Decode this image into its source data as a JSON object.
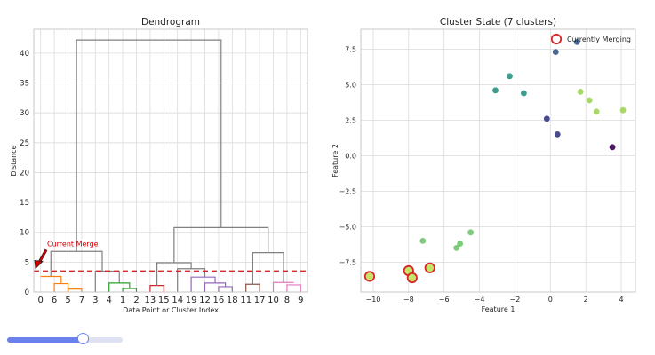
{
  "chart_data": [
    {
      "type": "dendrogram",
      "title": "Dendrogram",
      "xlabel": "Data Point or Cluster Index",
      "ylabel": "Distance",
      "ylim": [
        0,
        44
      ],
      "yticks": [
        0,
        5,
        10,
        15,
        20,
        25,
        30,
        35,
        40
      ],
      "leaf_labels": [
        "0",
        "6",
        "5",
        "7",
        "3",
        "4",
        "1",
        "2",
        "13",
        "15",
        "14",
        "19",
        "12",
        "16",
        "18",
        "11",
        "17",
        "10",
        "8",
        "9"
      ],
      "grid": true,
      "cut_height": 3.5,
      "cut_line_color": "#d62728",
      "annotation": {
        "text": "Current Merge",
        "color": "#cc0000",
        "target_height": 3.5
      },
      "links": [
        {
          "x": [
            0,
            1.5
          ],
          "y": [
            2.6,
            1.4
          ],
          "height": 2.6,
          "color": "#ff7f0e"
        },
        {
          "x": [
            1,
            2
          ],
          "y": [
            0,
            0
          ],
          "height": 1.4,
          "color": "#ff7f0e"
        },
        {
          "x": [
            2,
            3
          ],
          "y": [
            0,
            0
          ],
          "height": 0.5,
          "color": "#ff7f0e"
        },
        {
          "x": [
            0.75,
            4.5
          ],
          "y": [
            2.6,
            3.5
          ],
          "height": 6.8,
          "color": "#808080"
        },
        {
          "x": [
            4,
            5.75
          ],
          "y": [
            0,
            1.5
          ],
          "height": 3.5,
          "color": "#808080"
        },
        {
          "x": [
            5,
            6.5
          ],
          "y": [
            0,
            0.6
          ],
          "height": 1.5,
          "color": "#2ca02c"
        },
        {
          "x": [
            6,
            7
          ],
          "y": [
            0,
            0
          ],
          "height": 0.6,
          "color": "#2ca02c"
        },
        {
          "x": [
            8,
            9
          ],
          "y": [
            0,
            0
          ],
          "height": 1.1,
          "color": "#d62728"
        },
        {
          "x": [
            8.5,
            11
          ],
          "y": [
            1.1,
            3.9
          ],
          "height": 4.9,
          "color": "#808080"
        },
        {
          "x": [
            10,
            12
          ],
          "y": [
            0,
            2.5
          ],
          "height": 3.9,
          "color": "#808080"
        },
        {
          "x": [
            11,
            12.75
          ],
          "y": [
            0,
            1.5
          ],
          "height": 2.5,
          "color": "#9467bd"
        },
        {
          "x": [
            12,
            13.5
          ],
          "y": [
            0,
            0.9
          ],
          "height": 1.5,
          "color": "#9467bd"
        },
        {
          "x": [
            13,
            14
          ],
          "y": [
            0,
            0
          ],
          "height": 0.9,
          "color": "#9467bd"
        },
        {
          "x": [
            15,
            16
          ],
          "y": [
            0,
            0
          ],
          "height": 1.3,
          "color": "#8c564b"
        },
        {
          "x": [
            17,
            18.5
          ],
          "y": [
            0,
            1.6
          ],
          "height": 1.6,
          "color": "#e377c2"
        },
        {
          "x": [
            18,
            19
          ],
          "y": [
            0,
            0
          ],
          "height": 1.2,
          "color": "#e377c2"
        },
        {
          "x": [
            15.5,
            17.75
          ],
          "y": [
            1.3,
            1.6
          ],
          "height": 6.6,
          "color": "#808080"
        },
        {
          "x": [
            9.75,
            16.625
          ],
          "y": [
            4.9,
            6.6
          ],
          "height": 10.8,
          "color": "#808080"
        },
        {
          "x": [
            2.625,
            13.1875
          ],
          "y": [
            6.8,
            10.8
          ],
          "height": 42.2,
          "color": "#808080"
        }
      ]
    },
    {
      "type": "scatter",
      "title": "Cluster State (7 clusters)",
      "xlabel": "Feature 1",
      "ylabel": "Feature 2",
      "xlim": [
        -10.7,
        4.8
      ],
      "ylim": [
        -9.6,
        8.9
      ],
      "xticks": [
        -10,
        -8,
        -6,
        -4,
        -2,
        0,
        2,
        4
      ],
      "yticks": [
        -7.5,
        -5.0,
        -2.5,
        0.0,
        2.5,
        5.0,
        7.5
      ],
      "ytick_labels": [
        "−7.5",
        "−5.0",
        "−2.5",
        "0.0",
        "2.5",
        "5.0",
        "7.5"
      ],
      "xtick_labels": [
        "−10",
        "−8",
        "−6",
        "−4",
        "−2",
        "0",
        "2",
        "4"
      ],
      "grid": true,
      "legend": {
        "entries": [
          "Currently Merging"
        ],
        "placement": "top-right"
      },
      "highlight_color": "#d62728",
      "points": [
        {
          "x": -10.2,
          "y": -8.5,
          "color": "#c8e36a",
          "highlight": true
        },
        {
          "x": -8.0,
          "y": -8.1,
          "color": "#c8e36a",
          "highlight": true
        },
        {
          "x": -7.8,
          "y": -8.6,
          "color": "#c8e36a",
          "highlight": true
        },
        {
          "x": -6.8,
          "y": -7.9,
          "color": "#c8e36a",
          "highlight": true
        },
        {
          "x": -7.2,
          "y": -6.0,
          "color": "#7ccc7a"
        },
        {
          "x": -5.3,
          "y": -6.5,
          "color": "#7ccc7a"
        },
        {
          "x": -5.1,
          "y": -6.2,
          "color": "#7ccc7a"
        },
        {
          "x": -4.5,
          "y": -5.4,
          "color": "#7ccc7a"
        },
        {
          "x": -3.1,
          "y": 4.6,
          "color": "#3e9d8e"
        },
        {
          "x": -2.3,
          "y": 5.6,
          "color": "#3e9d8e"
        },
        {
          "x": -1.5,
          "y": 4.4,
          "color": "#3e9d8e"
        },
        {
          "x": 0.3,
          "y": 7.3,
          "color": "#4c6893"
        },
        {
          "x": 1.5,
          "y": 8.0,
          "color": "#4c6893"
        },
        {
          "x": -0.2,
          "y": 2.6,
          "color": "#4a4b8e"
        },
        {
          "x": 0.4,
          "y": 1.5,
          "color": "#4a4b8e"
        },
        {
          "x": 1.7,
          "y": 4.5,
          "color": "#a8d86a"
        },
        {
          "x": 2.2,
          "y": 3.9,
          "color": "#a8d86a"
        },
        {
          "x": 2.6,
          "y": 3.1,
          "color": "#a8d86a"
        },
        {
          "x": 4.1,
          "y": 3.2,
          "color": "#a8d86a"
        },
        {
          "x": 3.5,
          "y": 0.6,
          "color": "#4a1760"
        }
      ]
    }
  ],
  "slider": {
    "value": 0.66,
    "fill_color": "#6a80ec",
    "track_color": "#dde1f2"
  }
}
